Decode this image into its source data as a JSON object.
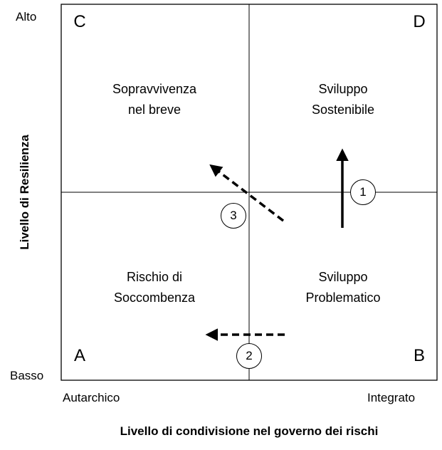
{
  "y_axis": {
    "title": "Livello di Resilienza",
    "top_label": "Alto",
    "bottom_label": "Basso"
  },
  "x_axis": {
    "title": "Livello di condivisione nel governo dei rischi",
    "left_label": "Autarchico",
    "right_label": "Integrato"
  },
  "quadrants": {
    "top_left": {
      "letter": "C",
      "lines": [
        "Sopravvivenza",
        "nel breve"
      ]
    },
    "top_right": {
      "letter": "D",
      "lines": [
        "Sviluppo",
        "Sostenibile"
      ]
    },
    "bottom_left": {
      "letter": "A",
      "lines": [
        "Rischio di",
        "Soccombenza"
      ]
    },
    "bottom_right": {
      "letter": "B",
      "lines": [
        "Sviluppo",
        "Problematico"
      ]
    }
  },
  "markers": {
    "m1": "1",
    "m2": "2",
    "m3": "3"
  }
}
